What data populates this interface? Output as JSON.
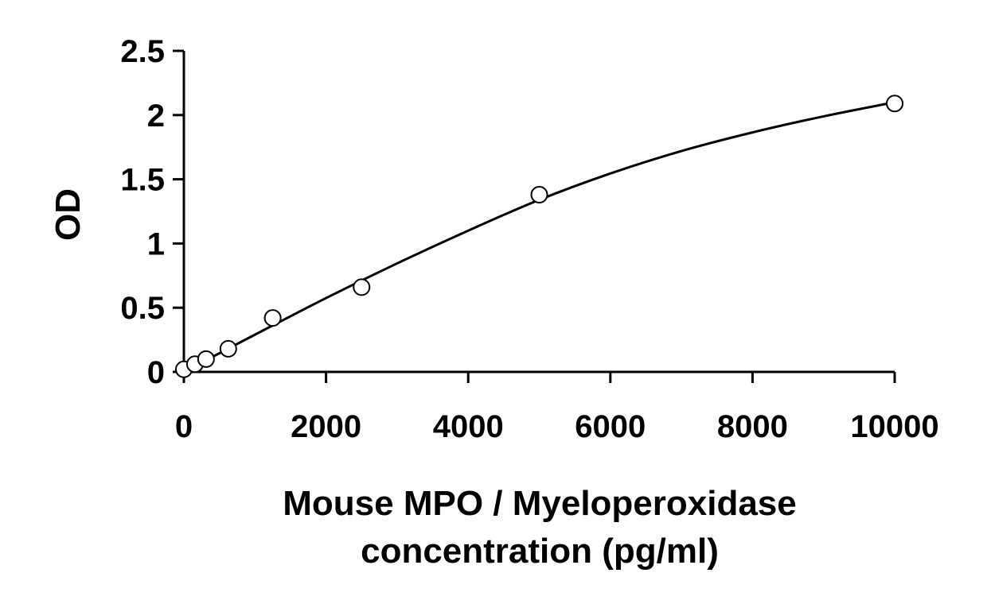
{
  "chart_data": {
    "type": "scatter",
    "title": "",
    "xlabel_lines": [
      "Mouse MPO / Myeloperoxidase",
      "concentration (pg/ml)"
    ],
    "ylabel": "OD",
    "xlim": [
      0,
      10000
    ],
    "ylim": [
      0,
      2.5
    ],
    "x_ticks": [
      0,
      2000,
      4000,
      6000,
      8000,
      10000
    ],
    "x_tick_labels": [
      "0",
      "2000",
      "4000",
      "6000",
      "8000",
      "10000"
    ],
    "y_ticks": [
      0,
      0.5,
      1,
      1.5,
      2,
      2.5
    ],
    "y_tick_labels": [
      "0",
      "0.5",
      "1",
      "1.5",
      "2",
      "2.5"
    ],
    "grid": false,
    "legend": "none",
    "series": [
      {
        "marker": "open-circle",
        "x": [
          0,
          156,
          312,
          625,
          1250,
          2500,
          5000,
          10000
        ],
        "y": [
          0.02,
          0.06,
          0.1,
          0.18,
          0.42,
          0.66,
          1.38,
          2.09
        ]
      }
    ],
    "fit_curve": {
      "type": "smooth-line",
      "color": "#000000",
      "x": [
        0,
        1000,
        2000,
        3000,
        4000,
        5000,
        6000,
        7000,
        8000,
        9000,
        10000
      ],
      "y": [
        0.0,
        0.29,
        0.575,
        0.845,
        1.1,
        1.34,
        1.545,
        1.72,
        1.865,
        1.99,
        2.1
      ]
    }
  }
}
